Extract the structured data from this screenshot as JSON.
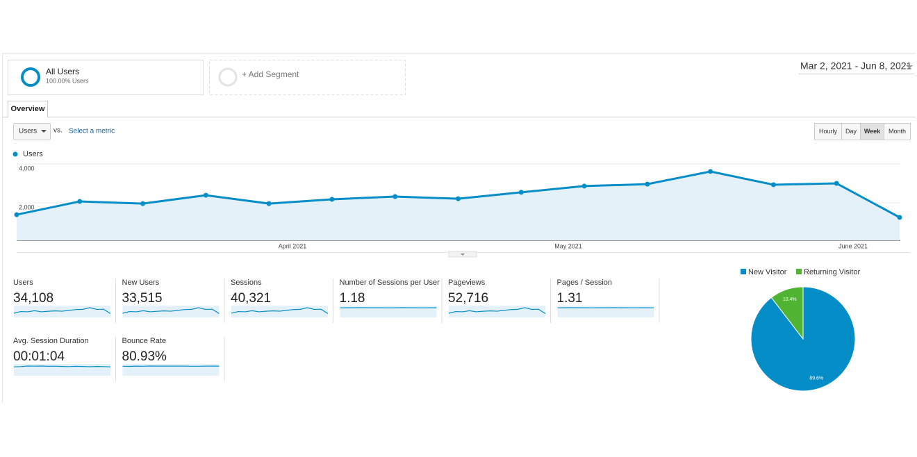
{
  "segments": {
    "all_users": {
      "title": "All Users",
      "subtitle": "100.00% Users"
    },
    "add_segment": "+ Add Segment"
  },
  "date_range": "Mar 2, 2021 - Jun 8, 2021",
  "tab": "Overview",
  "controls": {
    "metric": "Users",
    "vs": "vs.",
    "select_metric": "Select a metric",
    "intervals": [
      "Hourly",
      "Day",
      "Week",
      "Month"
    ],
    "active_interval": "Week"
  },
  "chart_data": [
    {
      "type": "line",
      "categories": [
        null,
        null,
        null,
        null,
        null,
        null,
        null,
        null,
        null,
        null,
        null,
        null,
        null,
        null,
        null
      ],
      "month_labels": [
        "April 2021",
        "May 2021",
        "June 2021"
      ],
      "series": [
        {
          "name": "Users",
          "color": "#058dc7",
          "values": [
            1390,
            2070,
            1960,
            2390,
            1960,
            2180,
            2320,
            2210,
            2540,
            2860,
            2960,
            3610,
            2930,
            3000,
            1250
          ]
        }
      ],
      "ylim": [
        0,
        4000
      ],
      "yticks": [
        {
          "value": 2000,
          "label": "2,000"
        },
        {
          "value": 4000,
          "label": "4,000"
        }
      ],
      "grid": true
    },
    {
      "type": "pie",
      "categories": [
        "New Visitor",
        "Returning Visitor"
      ],
      "values": [
        89.6,
        10.4
      ],
      "value_labels": [
        "89.6%",
        "10.4%"
      ],
      "colors": [
        "#058dc7",
        "#50b432"
      ]
    }
  ],
  "scorecards": [
    {
      "label": "Users",
      "value": "34,108",
      "trend": [
        1390,
        2070,
        1960,
        2390,
        1960,
        2180,
        2320,
        2210,
        2540,
        2860,
        2960,
        3610,
        2930,
        3000,
        1250
      ]
    },
    {
      "label": "New Users",
      "value": "33,515",
      "trend": [
        1370,
        2030,
        1930,
        2350,
        1930,
        2140,
        2280,
        2170,
        2500,
        2810,
        2910,
        3550,
        2880,
        2950,
        1230
      ]
    },
    {
      "label": "Sessions",
      "value": "40,321",
      "trend": [
        1640,
        2440,
        2310,
        2820,
        2310,
        2570,
        2740,
        2610,
        3000,
        3370,
        3490,
        4260,
        3460,
        3540,
        1480
      ]
    },
    {
      "label": "Number of Sessions per User",
      "value": "1.18",
      "trend": [
        1.17,
        1.18,
        1.18,
        1.19,
        1.18,
        1.18,
        1.18,
        1.17,
        1.18,
        1.19,
        1.18,
        1.18,
        1.17,
        1.18,
        1.18
      ]
    },
    {
      "label": "Pageviews",
      "value": "52,716",
      "trend": [
        2150,
        3210,
        3040,
        3700,
        3040,
        3380,
        3600,
        3430,
        3940,
        4430,
        4590,
        5600,
        4540,
        4650,
        1940
      ]
    },
    {
      "label": "Pages / Session",
      "value": "1.31",
      "trend": [
        1.3,
        1.31,
        1.32,
        1.31,
        1.31,
        1.3,
        1.31,
        1.31,
        1.32,
        1.31,
        1.31,
        1.3,
        1.31,
        1.31,
        1.3
      ]
    },
    {
      "label": "Avg. Session Duration",
      "value": "00:01:04",
      "trend": [
        60,
        62,
        66,
        65,
        66,
        64,
        65,
        63,
        62,
        64,
        63,
        61,
        63,
        62,
        60
      ]
    },
    {
      "label": "Bounce Rate",
      "value": "80.93%",
      "trend": [
        80,
        79,
        81,
        80,
        82,
        81,
        81,
        81,
        81,
        81,
        80,
        80,
        81,
        81,
        81
      ]
    }
  ]
}
